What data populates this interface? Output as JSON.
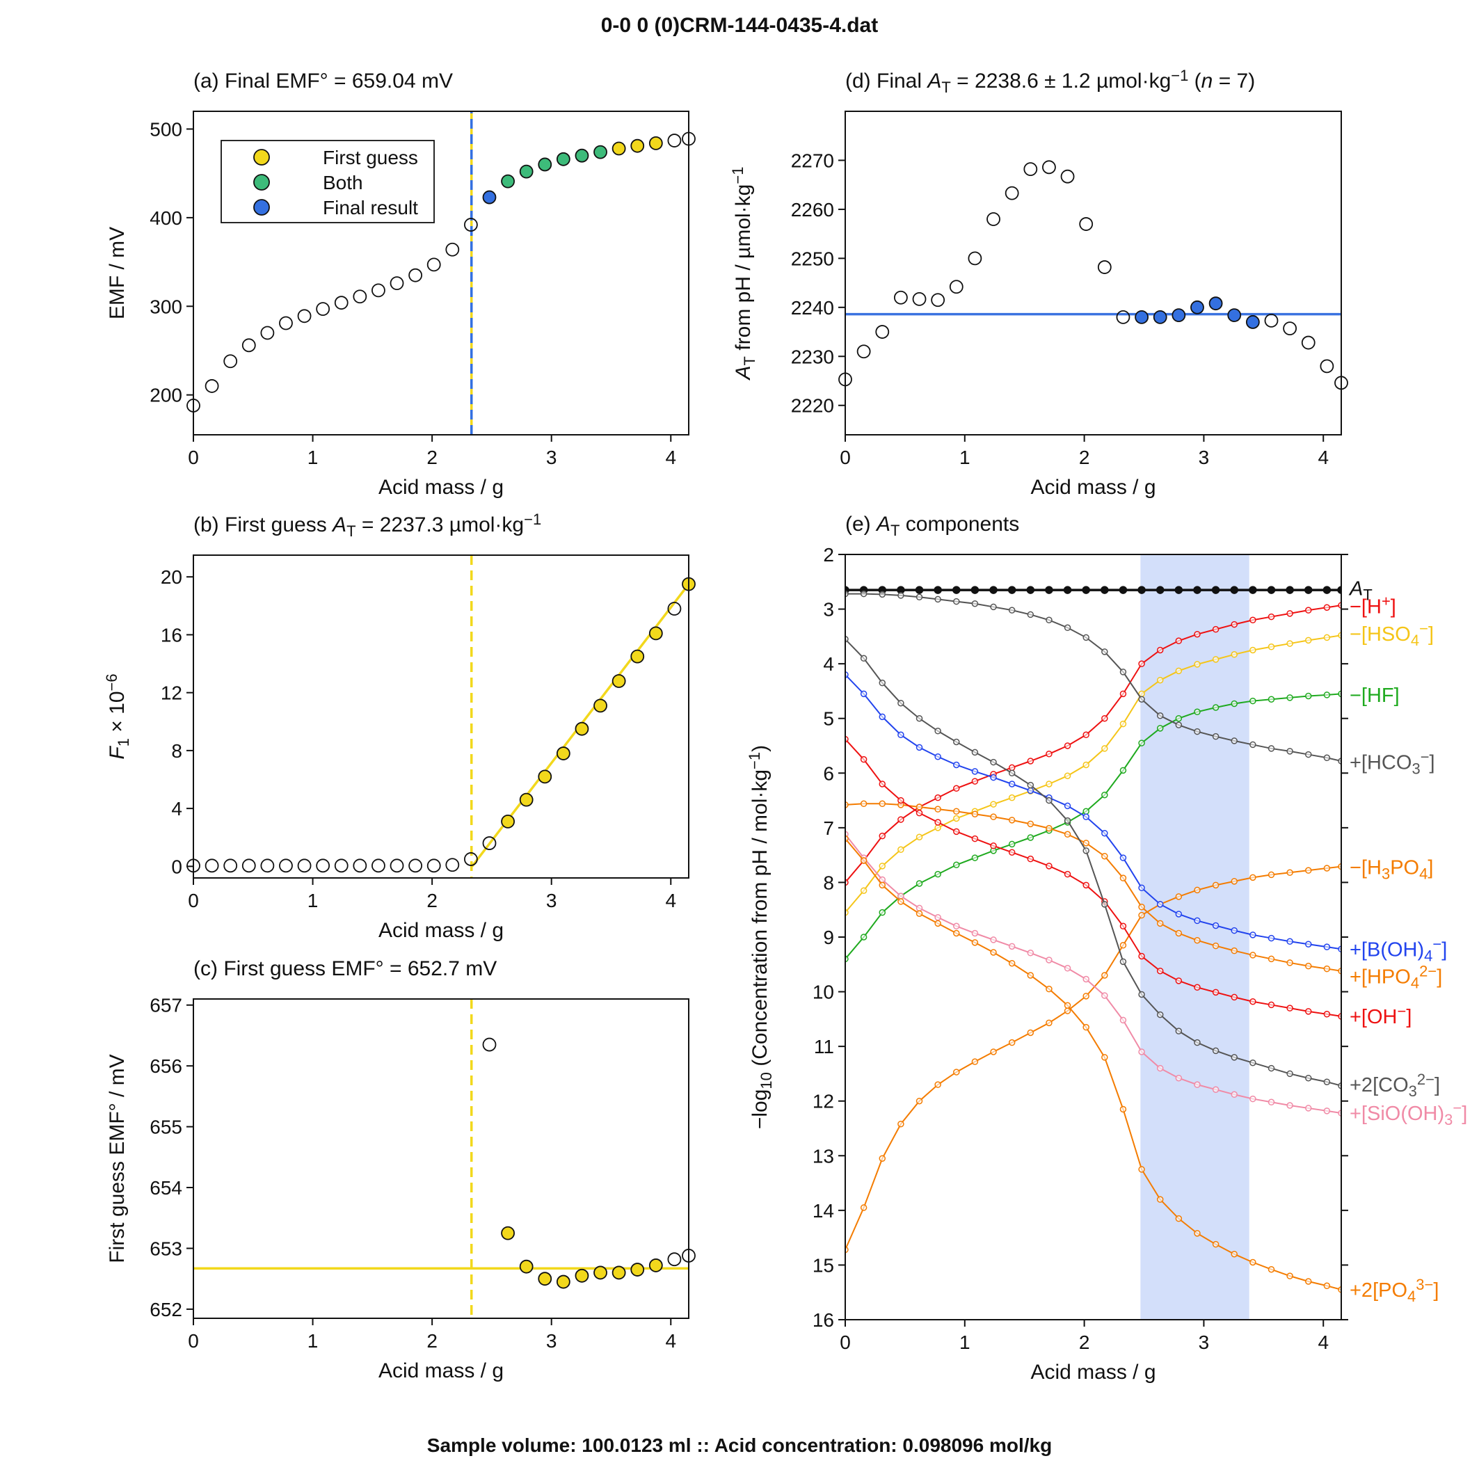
{
  "suptitle": "0-0  0  (0)CRM-144-0435-4.dat",
  "footer": "Sample volume: 100.0123 ml :: Acid concentration: 0.098096 mol/kg",
  "colors": {
    "first_guess": "#f2d81c",
    "both": "#3dbb7a",
    "final": "#3470e0",
    "final_line": "#3a72e0",
    "shade": "#d3dffa",
    "hplus": "#ee1111",
    "hso4": "#f5c518",
    "hf": "#1faa1f",
    "hco3": "#555555",
    "h3po4": "#f47c00",
    "boh4": "#2244ee",
    "hpo4": "#f47c00",
    "oh": "#ee1111",
    "co3": "#555555",
    "sioh3": "#f08aa6",
    "po4": "#f47c00",
    "at": "#111111"
  },
  "chart_data": [
    {
      "id": "a",
      "type": "scatter",
      "title": "(a) Final EMF° = 659.04 mV",
      "xlabel": "Acid mass / g",
      "ylabel": "EMF / mV",
      "xlim": [
        0,
        4.15
      ],
      "ylim": [
        155,
        520
      ],
      "xticks": [
        0,
        1,
        2,
        3,
        4
      ],
      "yticks": [
        200,
        300,
        400,
        500
      ],
      "vline": 2.33,
      "legend": {
        "position": "top-left",
        "entries": [
          "First guess",
          "Both",
          "Final result"
        ]
      },
      "x": [
        0.0,
        0.155,
        0.31,
        0.465,
        0.62,
        0.775,
        0.93,
        1.085,
        1.24,
        1.395,
        1.55,
        1.705,
        1.86,
        2.015,
        2.17,
        2.325,
        2.48,
        2.635,
        2.79,
        2.945,
        3.1,
        3.255,
        3.41,
        3.565,
        3.72,
        3.875,
        4.03,
        4.15
      ],
      "x_note": "acid mass (g)",
      "y": [
        188,
        210,
        238,
        256,
        270,
        281,
        289,
        297,
        304,
        311,
        318,
        326,
        335,
        347,
        364,
        392,
        423,
        441,
        452,
        460,
        466,
        470,
        474,
        478,
        481,
        484,
        487,
        489
      ],
      "status": [
        "none",
        "none",
        "none",
        "none",
        "none",
        "none",
        "none",
        "none",
        "none",
        "none",
        "none",
        "none",
        "none",
        "none",
        "none",
        "none",
        "final",
        "both",
        "both",
        "both",
        "both",
        "both",
        "both",
        "guess",
        "guess",
        "guess",
        "none",
        "none"
      ]
    },
    {
      "id": "b",
      "type": "scatter",
      "title": "(b) First guess A_T = 2237.3 µmol·kg⁻¹",
      "title_parts": [
        "(b) First guess ",
        "A",
        "T",
        " = 2237.3 µmol·kg",
        "−1"
      ],
      "xlabel": "Acid mass / g",
      "ylabel_parts": [
        "F",
        "1",
        " × 10",
        "−6"
      ],
      "xlim": [
        0,
        4.15
      ],
      "ylim": [
        -0.8,
        21.5
      ],
      "xticks": [
        0,
        1,
        2,
        3,
        4
      ],
      "yticks": [
        0,
        4,
        8,
        12,
        16,
        20
      ],
      "vline": 2.33,
      "fit_line": [
        [
          2.335,
          0.0
        ],
        [
          4.15,
          19.5
        ]
      ],
      "x": [
        0.0,
        0.155,
        0.31,
        0.465,
        0.62,
        0.775,
        0.93,
        1.085,
        1.24,
        1.395,
        1.55,
        1.705,
        1.86,
        2.015,
        2.17,
        2.325,
        2.48,
        2.635,
        2.79,
        2.945,
        3.1,
        3.255,
        3.41,
        3.565,
        3.72,
        3.875,
        4.03,
        4.15
      ],
      "y": [
        0.05,
        0.05,
        0.05,
        0.05,
        0.05,
        0.05,
        0.05,
        0.05,
        0.05,
        0.05,
        0.05,
        0.05,
        0.05,
        0.05,
        0.1,
        0.5,
        1.6,
        3.1,
        4.6,
        6.2,
        7.8,
        9.5,
        11.1,
        12.8,
        14.5,
        16.1,
        17.8,
        19.5
      ],
      "status": [
        "none",
        "none",
        "none",
        "none",
        "none",
        "none",
        "none",
        "none",
        "none",
        "none",
        "none",
        "none",
        "none",
        "none",
        "none",
        "none",
        "none",
        "guess",
        "guess",
        "guess",
        "guess",
        "guess",
        "guess",
        "guess",
        "guess",
        "guess",
        "none",
        "guess"
      ]
    },
    {
      "id": "c",
      "type": "scatter",
      "title": "(c) First guess EMF° = 652.7 mV",
      "xlabel": "Acid mass / g",
      "ylabel": "First guess EMF° / mV",
      "xlim": [
        0,
        4.15
      ],
      "ylim": [
        651.85,
        657.1
      ],
      "xticks": [
        0,
        1,
        2,
        3,
        4
      ],
      "yticks": [
        652,
        653,
        654,
        655,
        656,
        657
      ],
      "vline": 2.33,
      "hline": 652.67,
      "x": [
        2.48,
        2.635,
        2.79,
        2.945,
        3.1,
        3.255,
        3.41,
        3.565,
        3.72,
        3.875,
        4.03,
        4.15
      ],
      "y": [
        656.35,
        653.25,
        652.7,
        652.5,
        652.45,
        652.55,
        652.6,
        652.6,
        652.65,
        652.72,
        652.82,
        652.88
      ],
      "status": [
        "none",
        "guess",
        "guess",
        "guess",
        "guess",
        "guess",
        "guess",
        "guess",
        "guess",
        "guess",
        "none",
        "none"
      ]
    },
    {
      "id": "d",
      "type": "scatter",
      "title_parts": [
        "(d) Final ",
        "A",
        "T",
        " = 2238.6 ± 1.2 µmol·kg",
        "−1",
        " (",
        "n",
        " = 7)"
      ],
      "title": "(d) Final A_T = 2238.6 ± 1.2 µmol·kg⁻¹ (n = 7)",
      "xlabel": "Acid mass / g",
      "ylabel_parts": [
        "A",
        "T",
        " from pH / µmol·kg",
        "−1"
      ],
      "xlim": [
        0,
        4.15
      ],
      "ylim": [
        2214,
        2280
      ],
      "xticks": [
        0,
        1,
        2,
        3,
        4
      ],
      "yticks": [
        2220,
        2230,
        2240,
        2250,
        2260,
        2270
      ],
      "hline": 2238.6,
      "x": [
        0.0,
        0.155,
        0.31,
        0.465,
        0.62,
        0.775,
        0.93,
        1.085,
        1.24,
        1.395,
        1.55,
        1.705,
        1.86,
        2.015,
        2.17,
        2.325,
        2.48,
        2.635,
        2.79,
        2.945,
        3.1,
        3.255,
        3.41,
        3.565,
        3.72,
        3.875,
        4.03,
        4.15
      ],
      "y": [
        2225.3,
        2231,
        2235,
        2242,
        2241.7,
        2241.5,
        2244.2,
        2250,
        2258,
        2263.3,
        2268.2,
        2268.6,
        2266.7,
        2257,
        2248.2,
        2238,
        2238,
        2238,
        2238.4,
        2240,
        2240.8,
        2238.4,
        2237,
        2237.3,
        2235.7,
        2232.8,
        2228,
        2224.6
      ],
      "status": [
        "none",
        "none",
        "none",
        "none",
        "none",
        "none",
        "none",
        "none",
        "none",
        "none",
        "none",
        "none",
        "none",
        "none",
        "none",
        "none",
        "final",
        "final",
        "final",
        "final",
        "final",
        "final",
        "final",
        "none",
        "none",
        "none",
        "none",
        "none"
      ]
    },
    {
      "id": "e",
      "type": "line",
      "title_parts": [
        "(e) ",
        "A",
        "T",
        " components"
      ],
      "title": "(e) A_T components",
      "xlabel": "Acid mass / g",
      "ylabel_parts": [
        "−log",
        "10",
        " (Concentration from pH / mol·kg",
        "−1",
        ")"
      ],
      "xlim": [
        0,
        4.15
      ],
      "ylim": [
        2,
        16
      ],
      "y_inverted": true,
      "xticks": [
        0,
        1,
        2,
        3,
        4
      ],
      "yticks": [
        2,
        3,
        4,
        5,
        6,
        7,
        8,
        9,
        10,
        11,
        12,
        13,
        14,
        15,
        16
      ],
      "shade": [
        2.47,
        3.38
      ],
      "x": [
        0.0,
        0.155,
        0.31,
        0.465,
        0.62,
        0.775,
        0.93,
        1.085,
        1.24,
        1.395,
        1.55,
        1.705,
        1.86,
        2.015,
        2.17,
        2.325,
        2.48,
        2.635,
        2.79,
        2.945,
        3.1,
        3.255,
        3.41,
        3.565,
        3.72,
        3.875,
        4.03,
        4.15
      ],
      "series": [
        {
          "key": "at",
          "label_parts": [
            {
              "t": "A"
            },
            {
              "t": "T",
              "sub": true
            }
          ],
          "label_y": 2.62,
          "values": [
            2.65,
            2.65,
            2.65,
            2.65,
            2.65,
            2.65,
            2.65,
            2.65,
            2.65,
            2.65,
            2.65,
            2.65,
            2.65,
            2.65,
            2.65,
            2.65,
            2.65,
            2.65,
            2.65,
            2.65,
            2.65,
            2.65,
            2.65,
            2.65,
            2.65,
            2.65,
            2.65,
            2.65
          ]
        },
        {
          "key": "hplus",
          "label_parts": [
            {
              "t": "−[H"
            },
            {
              "t": "+",
              "sup": true
            },
            {
              "t": "]"
            }
          ],
          "label_y": 2.95,
          "values": [
            8.0,
            7.6,
            7.15,
            6.85,
            6.62,
            6.45,
            6.28,
            6.15,
            6.02,
            5.9,
            5.78,
            5.65,
            5.5,
            5.3,
            5.0,
            4.55,
            4.0,
            3.75,
            3.58,
            3.46,
            3.37,
            3.28,
            3.2,
            3.14,
            3.08,
            3.02,
            2.97,
            2.93
          ]
        },
        {
          "key": "hso4",
          "label_parts": [
            {
              "t": "−[HSO"
            },
            {
              "t": "4",
              "sub": true
            },
            {
              "t": "−",
              "sup": true
            },
            {
              "t": "]"
            }
          ],
          "label_y": 3.45,
          "values": [
            8.55,
            8.15,
            7.7,
            7.4,
            7.17,
            7.0,
            6.83,
            6.7,
            6.57,
            6.45,
            6.33,
            6.2,
            6.05,
            5.85,
            5.55,
            5.1,
            4.55,
            4.3,
            4.13,
            4.01,
            3.92,
            3.83,
            3.75,
            3.69,
            3.63,
            3.57,
            3.52,
            3.48
          ]
        },
        {
          "key": "hf",
          "label_parts": [
            {
              "t": "−[HF]"
            }
          ],
          "label_y": 4.57,
          "values": [
            9.4,
            9.0,
            8.55,
            8.25,
            8.02,
            7.85,
            7.68,
            7.55,
            7.42,
            7.3,
            7.18,
            7.05,
            6.9,
            6.7,
            6.4,
            5.95,
            5.45,
            5.18,
            5.0,
            4.88,
            4.8,
            4.73,
            4.68,
            4.65,
            4.62,
            4.59,
            4.57,
            4.55
          ]
        },
        {
          "key": "hco3",
          "label_parts": [
            {
              "t": "+[HCO"
            },
            {
              "t": "3",
              "sub": true
            },
            {
              "t": "−",
              "sup": true
            },
            {
              "t": "]"
            }
          ],
          "label_y": 5.8,
          "values": [
            2.72,
            2.72,
            2.73,
            2.75,
            2.78,
            2.82,
            2.86,
            2.9,
            2.96,
            3.02,
            3.1,
            3.2,
            3.34,
            3.52,
            3.78,
            4.15,
            4.65,
            4.95,
            5.12,
            5.24,
            5.33,
            5.41,
            5.48,
            5.55,
            5.6,
            5.66,
            5.72,
            5.78
          ]
        },
        {
          "key": "h3po4",
          "label_parts": [
            {
              "t": "−[H"
            },
            {
              "t": "3",
              "sub": true
            },
            {
              "t": "PO"
            },
            {
              "t": "4",
              "sub": true
            },
            {
              "t": "]"
            }
          ],
          "label_y": 7.72,
          "values": [
            14.72,
            13.95,
            13.05,
            12.42,
            12.0,
            11.7,
            11.47,
            11.28,
            11.1,
            10.93,
            10.75,
            10.57,
            10.35,
            10.08,
            9.7,
            9.15,
            8.6,
            8.4,
            8.26,
            8.14,
            8.05,
            7.98,
            7.91,
            7.86,
            7.82,
            7.78,
            7.74,
            7.71
          ]
        },
        {
          "key": "boh4",
          "label_parts": [
            {
              "t": "+[B(OH)"
            },
            {
              "t": "4",
              "sub": true
            },
            {
              "t": "−",
              "sup": true
            },
            {
              "t": "]"
            }
          ],
          "label_y": 9.22,
          "values": [
            4.2,
            4.55,
            4.97,
            5.3,
            5.53,
            5.7,
            5.85,
            5.97,
            6.08,
            6.2,
            6.32,
            6.45,
            6.6,
            6.8,
            7.1,
            7.55,
            8.1,
            8.4,
            8.58,
            8.7,
            8.79,
            8.88,
            8.96,
            9.02,
            9.08,
            9.13,
            9.18,
            9.22
          ]
        },
        {
          "key": "hpo4",
          "label_parts": [
            {
              "t": "+[HPO"
            },
            {
              "t": "4",
              "sub": true
            },
            {
              "t": "2−",
              "sup": true
            },
            {
              "t": "]"
            }
          ],
          "label_y": 9.72,
          "values": [
            6.58,
            6.56,
            6.56,
            6.58,
            6.62,
            6.66,
            6.7,
            6.75,
            6.8,
            6.86,
            6.93,
            7.01,
            7.12,
            7.28,
            7.52,
            7.92,
            8.45,
            8.75,
            8.93,
            9.06,
            9.16,
            9.25,
            9.33,
            9.4,
            9.47,
            9.53,
            9.58,
            9.62
          ]
        },
        {
          "key": "oh",
          "label_parts": [
            {
              "t": "+[OH"
            },
            {
              "t": "−",
              "sup": true
            },
            {
              "t": "]"
            }
          ],
          "label_y": 10.45,
          "values": [
            5.38,
            5.75,
            6.2,
            6.5,
            6.73,
            6.9,
            7.07,
            7.2,
            7.33,
            7.45,
            7.57,
            7.7,
            7.85,
            8.05,
            8.35,
            8.8,
            9.35,
            9.62,
            9.8,
            9.92,
            10.01,
            10.1,
            10.18,
            10.24,
            10.3,
            10.36,
            10.41,
            10.45
          ]
        },
        {
          "key": "co3",
          "label_parts": [
            {
              "t": "+2[CO"
            },
            {
              "t": "3",
              "sub": true
            },
            {
              "t": "2−",
              "sup": true
            },
            {
              "t": "]"
            }
          ],
          "label_y": 11.7,
          "values": [
            3.55,
            3.9,
            4.35,
            4.72,
            5.0,
            5.23,
            5.43,
            5.62,
            5.8,
            6.0,
            6.22,
            6.5,
            6.87,
            7.42,
            8.4,
            9.45,
            10.05,
            10.42,
            10.72,
            10.93,
            11.08,
            11.2,
            11.3,
            11.4,
            11.5,
            11.58,
            11.65,
            11.72
          ]
        },
        {
          "key": "sioh3",
          "label_parts": [
            {
              "t": "+[SiO(OH)"
            },
            {
              "t": "3",
              "sub": true
            },
            {
              "t": "−",
              "sup": true
            },
            {
              "t": "]"
            }
          ],
          "label_y": 12.22,
          "values": [
            7.12,
            7.55,
            7.95,
            8.25,
            8.47,
            8.64,
            8.8,
            8.93,
            9.05,
            9.17,
            9.29,
            9.42,
            9.57,
            9.77,
            10.07,
            10.52,
            11.1,
            11.4,
            11.58,
            11.7,
            11.79,
            11.88,
            11.96,
            12.02,
            12.08,
            12.13,
            12.18,
            12.22
          ]
        },
        {
          "key": "po4",
          "label_parts": [
            {
              "t": "+2[PO"
            },
            {
              "t": "4",
              "sub": true
            },
            {
              "t": "3−",
              "sup": true
            },
            {
              "t": "]"
            }
          ],
          "label_y": 15.45,
          "values": [
            7.2,
            7.6,
            8.05,
            8.35,
            8.57,
            8.75,
            8.93,
            9.1,
            9.28,
            9.48,
            9.7,
            9.95,
            10.25,
            10.65,
            11.2,
            12.15,
            13.25,
            13.8,
            14.15,
            14.42,
            14.62,
            14.8,
            14.95,
            15.08,
            15.2,
            15.3,
            15.38,
            15.45
          ]
        }
      ]
    }
  ]
}
